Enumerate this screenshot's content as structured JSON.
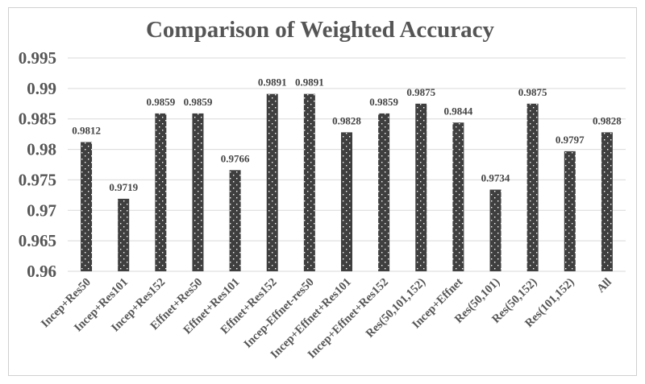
{
  "chart_data": {
    "type": "bar",
    "title": "Comparison of Weighted Accuracy",
    "xlabel": "",
    "ylabel": "",
    "ylim": [
      0.96,
      0.995
    ],
    "yticks": [
      "0.96",
      "0.965",
      "0.97",
      "0.975",
      "0.98",
      "0.985",
      "0.99",
      "0.995"
    ],
    "grid": true,
    "legend": "none",
    "categories": [
      "Incep+Res50",
      "Incep+Res101",
      "Incep+Res152",
      "Effnet+Res50",
      "Effnet+Res101",
      "Effnet+Res152",
      "Incep-Effnet-res50",
      "Incep+Effnet+Res101",
      "Incep+Effnet+Res152",
      "Res(50,101,152)",
      "Incep+Effnet",
      "Res(50,101)",
      "Res(50,152)",
      "Res(101,152)",
      "All"
    ],
    "values": [
      0.9812,
      0.9719,
      0.9859,
      0.9859,
      0.9766,
      0.9891,
      0.9891,
      0.9828,
      0.9859,
      0.9875,
      0.9844,
      0.9734,
      0.9875,
      0.9797,
      0.9828
    ],
    "data_labels": [
      "0.9812",
      "0.9719",
      "0.9859",
      "0.9859",
      "0.9766",
      "0.9891",
      "0.9891",
      "0.9828",
      "0.9859",
      "0.9875",
      "0.9844",
      "0.9734",
      "0.9875",
      "0.9797",
      "0.9828"
    ],
    "colors": {
      "bar": "#3f3f3f",
      "dots": "#ffffff",
      "grid": "#d9d9d9",
      "text": "#555555",
      "border": "#d0d0d0"
    }
  }
}
